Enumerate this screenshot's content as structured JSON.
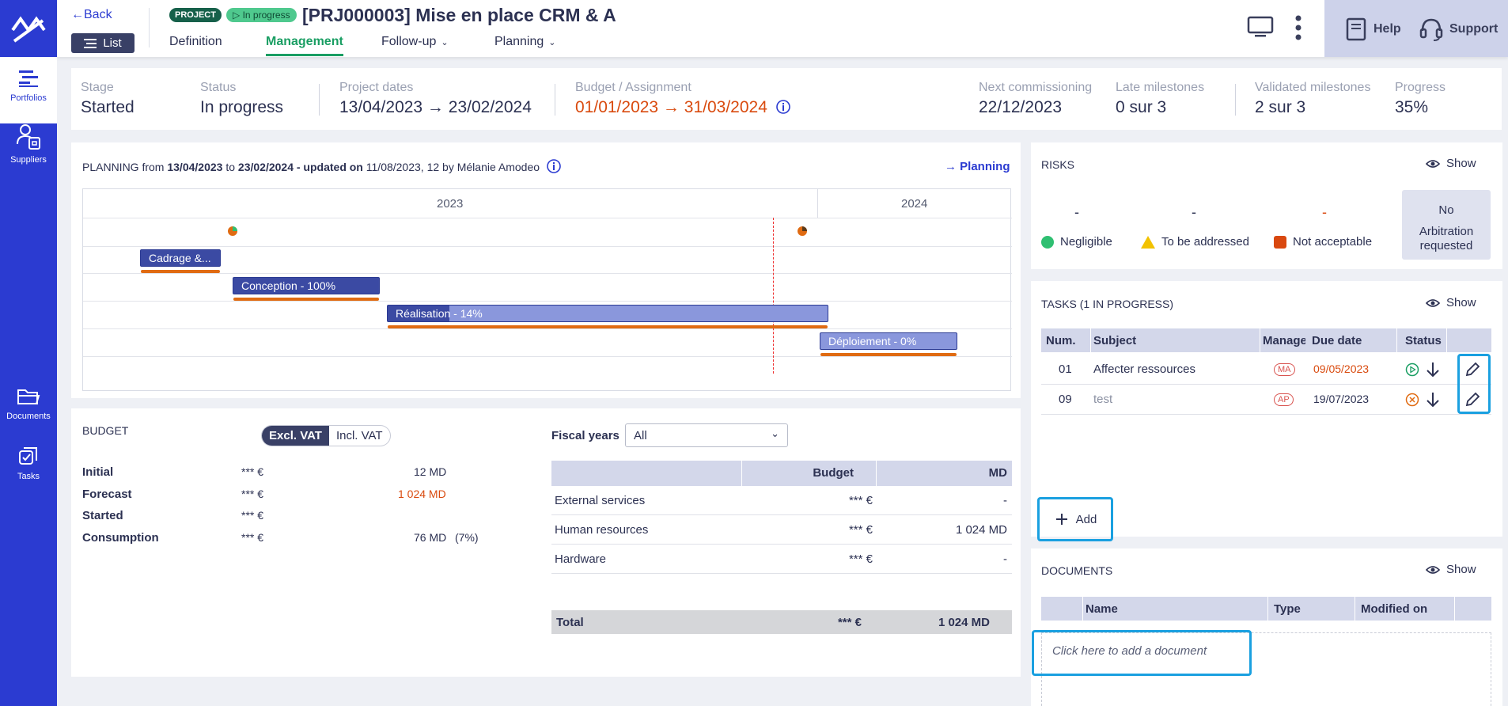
{
  "sidebar": {
    "items": [
      {
        "label": "Portfolios",
        "icon": "portfolios-icon"
      },
      {
        "label": "Suppliers",
        "icon": "suppliers-icon"
      },
      {
        "label": "Documents",
        "icon": "folder-icon"
      },
      {
        "label": "Tasks",
        "icon": "tasks-icon"
      }
    ]
  },
  "header": {
    "back_label": "Back",
    "list_label": "List",
    "project_badge": "PROJECT",
    "status_badge": "In progress",
    "title": "[PRJ000003] Mise en place CRM & A",
    "tabs": [
      {
        "label": "Definition"
      },
      {
        "label": "Management"
      },
      {
        "label": "Follow-up"
      },
      {
        "label": "Planning"
      }
    ],
    "help_label": "Help",
    "support_label": "Support"
  },
  "summary": {
    "stage_label": "Stage",
    "stage_value": "Started",
    "status_label": "Status",
    "status_value": "In progress",
    "dates_label": "Project dates",
    "dates_value": "13/04/2023 → 23/02/2024",
    "budget_label": "Budget / Assignment",
    "budget_value": "01/01/2023 → 31/03/2024",
    "commission_label": "Next commissioning",
    "commission_value": "22/12/2023",
    "late_label": "Late milestones",
    "late_value": "0 sur 3",
    "validated_label": "Validated milestones",
    "validated_value": "2 sur 3",
    "progress_label": "Progress",
    "progress_value": "35%"
  },
  "planning": {
    "title_word": "PLANNING",
    "from_word": "from",
    "start": "13/04/2023",
    "to_word": "to",
    "end": "23/02/2024",
    "updated": "- updated on",
    "updated_date": "11/08/2023, 12",
    "by": "by",
    "author": "Mélanie Amodeo",
    "link_label": "Planning",
    "years": [
      "2023",
      "2024"
    ],
    "bars": [
      {
        "label": "Cadrage &...",
        "progress": 1.0
      },
      {
        "label": "Conception - 100%",
        "progress": 1.0
      },
      {
        "label": "Réalisation - 14%",
        "progress": 0.14
      },
      {
        "label": "Déploiement - 0%",
        "progress": 0.0
      }
    ]
  },
  "budget": {
    "title": "BUDGET",
    "toggle": [
      "Excl. VAT",
      "Incl. VAT"
    ],
    "rows": [
      {
        "label": "Initial",
        "amount": "*** €",
        "md": "12 MD",
        "pct": ""
      },
      {
        "label": "Forecast",
        "amount": "*** €",
        "md": "1 024 MD",
        "pct": ""
      },
      {
        "label": "Started",
        "amount": "*** €",
        "md": "",
        "pct": ""
      },
      {
        "label": "Consumption",
        "amount": "*** €",
        "md": "76 MD",
        "pct": "(7%)"
      }
    ],
    "fiscal_label": "Fiscal years",
    "fiscal_value": "All",
    "table_headers": [
      "Budget",
      "MD"
    ],
    "table_rows": [
      {
        "label": "External services",
        "budget": "*** €",
        "md": "-"
      },
      {
        "label": "Human resources",
        "budget": "*** €",
        "md": "1 024 MD"
      },
      {
        "label": "Hardware",
        "budget": "*** €",
        "md": "-"
      }
    ],
    "total_label": "Total",
    "total_budget": "*** €",
    "total_md": "1 024 MD"
  },
  "risks": {
    "title": "RISKS",
    "show_label": "Show",
    "counts": [
      "-",
      "-",
      "-"
    ],
    "legend": [
      "Negligible",
      "To be addressed",
      "Not acceptable"
    ],
    "arbitration": [
      "No",
      "Arbitration",
      "requested"
    ],
    "colors": {
      "negligible": "#2fbf71",
      "to_address": "#f2c200",
      "not_acceptable": "#d9480f"
    }
  },
  "tasks": {
    "title": "TASKS (1 IN PROGRESS)",
    "show_label": "Show",
    "headers": [
      "Num.",
      "Subject",
      "Manager",
      "Due date",
      "Status"
    ],
    "rows": [
      {
        "num": "01",
        "subject": "Affecter ressources",
        "manager": "MA",
        "due": "09/05/2023"
      },
      {
        "num": "09",
        "subject": "test",
        "manager": "AP",
        "due": "19/07/2023"
      }
    ],
    "add_label": "Add"
  },
  "documents": {
    "title": "DOCUMENTS",
    "show_label": "Show",
    "headers": [
      "Name",
      "Type",
      "Modified on"
    ],
    "empty_text": "Click here to add a document"
  }
}
